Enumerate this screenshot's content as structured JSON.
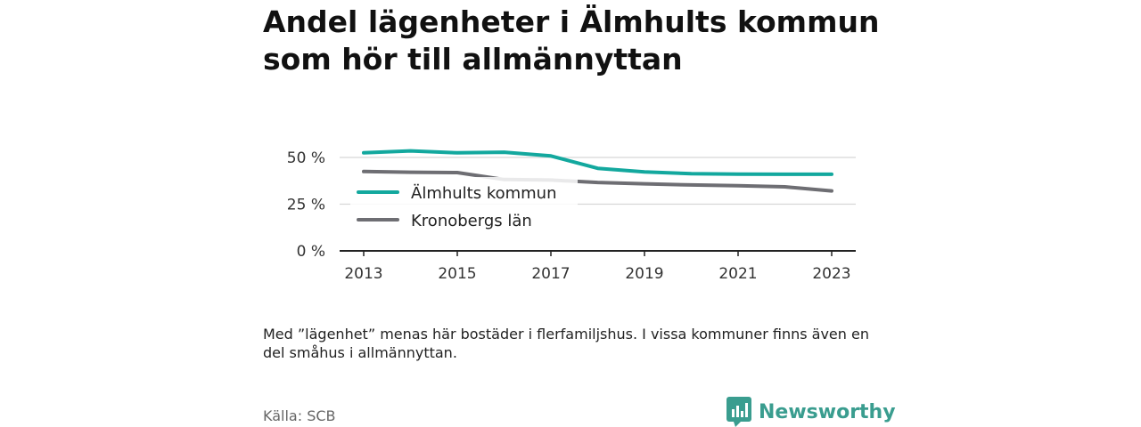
{
  "title": "Andel lägenheter i Älmhults kommun som hör till allmännyttan",
  "note": "Med ”lägenhet” menas här bostäder i flerfamiljshus. I vissa kommuner finns även en del småhus i allmännyttan.",
  "source": "Källa: SCB",
  "brand": {
    "name": "Newsworthy",
    "icon": "bar-chart-logo-icon",
    "color": "#3a9d8f"
  },
  "chart_data": {
    "type": "line",
    "title": "Andel lägenheter i Älmhults kommun som hör till allmännyttan",
    "xlabel": "",
    "ylabel": "",
    "x": [
      2013,
      2014,
      2015,
      2016,
      2017,
      2018,
      2019,
      2020,
      2021,
      2022,
      2023
    ],
    "x_ticks": [
      2013,
      2015,
      2017,
      2019,
      2021,
      2023
    ],
    "y_ticks": [
      0,
      25,
      50
    ],
    "y_tick_labels": [
      "0 %",
      "25 %",
      "50 %"
    ],
    "ylim": [
      0,
      55
    ],
    "grid": true,
    "legend_position": "inside-left",
    "series": [
      {
        "name": "Älmhults kommun",
        "color": "#13a89e",
        "values": [
          52.5,
          53.5,
          52.5,
          52.8,
          50.8,
          44.2,
          42.3,
          41.3,
          41.1,
          41.0,
          41.0
        ]
      },
      {
        "name": "Kronobergs län",
        "color": "#6e6e73",
        "values": [
          42.5,
          42.1,
          41.9,
          38.2,
          37.9,
          36.6,
          35.9,
          35.3,
          34.9,
          34.3,
          32.1
        ]
      }
    ]
  }
}
